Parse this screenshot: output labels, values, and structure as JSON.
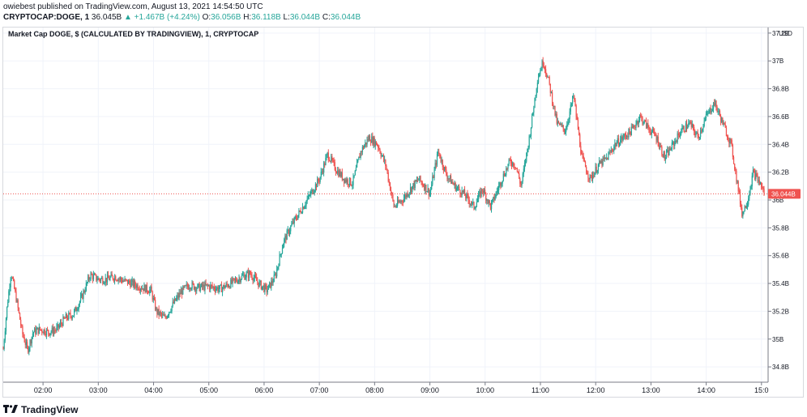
{
  "header": {
    "author_line": "owiebest published on TradingView.com, August 13, 2021 14:54:50 UTC",
    "symbol": "CRYPTOCAP:DOGE, 1",
    "price": "36.045B",
    "change": "▲ +1.467B (+4.24%)",
    "o_label": "O:",
    "o_value": "36.056B",
    "h_label": "H:",
    "h_value": "36.118B",
    "l_label": "L:",
    "l_value": "36.044B",
    "c_label": "C:",
    "c_value": "36.044B"
  },
  "chart": {
    "series_label": "Market Cap DOGE, $ (CALCULATED BY TRADINGVIEW), 1, CRYPTOCAP",
    "currency": "USD",
    "last_price_label": "36.044B"
  },
  "footer": {
    "brand": "TradingView",
    "logo_icon": "tradingview-logo-icon"
  },
  "colors": {
    "up": "#26a69a",
    "down": "#ef5350",
    "price_line": "#ef5350",
    "grid": "#f0f3fa"
  },
  "chart_data": {
    "type": "candlestick",
    "title": "Market Cap DOGE, $ (CALCULATED BY TRADINGVIEW), 1, CRYPTOCAP",
    "ylabel": "USD",
    "y_ticks": [
      "37.2B",
      "37B",
      "36.8B",
      "36.6B",
      "36.4B",
      "36.2B",
      "36B",
      "35.8B",
      "35.6B",
      "35.4B",
      "35.2B",
      "35B",
      "34.8B"
    ],
    "y_tick_values": [
      37.2,
      37.0,
      36.8,
      36.6,
      36.4,
      36.2,
      36.0,
      35.8,
      35.6,
      35.4,
      35.2,
      35.0,
      34.8
    ],
    "ylim": [
      34.69,
      37.24
    ],
    "x_ticks": [
      "02:00",
      "03:00",
      "04:00",
      "05:00",
      "06:00",
      "07:00",
      "08:00",
      "09:00",
      "10:00",
      "11:00",
      "12:00",
      "13:00",
      "14:00",
      "15:0"
    ],
    "x_tick_hours": [
      2,
      3,
      4,
      5,
      6,
      7,
      8,
      9,
      10,
      11,
      12,
      13,
      14,
      15
    ],
    "x_range_hours": [
      1.28,
      15.12
    ],
    "last_price": 36.044,
    "path_points": [
      [
        1.28,
        34.93
      ],
      [
        1.34,
        35.2
      ],
      [
        1.42,
        35.48
      ],
      [
        1.52,
        35.28
      ],
      [
        1.62,
        35.05
      ],
      [
        1.72,
        34.92
      ],
      [
        1.82,
        35.05
      ],
      [
        1.95,
        35.07
      ],
      [
        2.1,
        35.05
      ],
      [
        2.25,
        35.07
      ],
      [
        2.4,
        35.15
      ],
      [
        2.55,
        35.18
      ],
      [
        2.7,
        35.3
      ],
      [
        2.85,
        35.46
      ],
      [
        3.0,
        35.43
      ],
      [
        3.15,
        35.43
      ],
      [
        3.3,
        35.45
      ],
      [
        3.45,
        35.42
      ],
      [
        3.6,
        35.4
      ],
      [
        3.8,
        35.37
      ],
      [
        3.95,
        35.35
      ],
      [
        4.05,
        35.2
      ],
      [
        4.2,
        35.15
      ],
      [
        4.35,
        35.25
      ],
      [
        4.5,
        35.34
      ],
      [
        4.65,
        35.39
      ],
      [
        4.8,
        35.37
      ],
      [
        5.0,
        35.38
      ],
      [
        5.2,
        35.36
      ],
      [
        5.4,
        35.4
      ],
      [
        5.6,
        35.45
      ],
      [
        5.75,
        35.47
      ],
      [
        5.9,
        35.4
      ],
      [
        6.05,
        35.35
      ],
      [
        6.2,
        35.45
      ],
      [
        6.35,
        35.7
      ],
      [
        6.5,
        35.82
      ],
      [
        6.7,
        35.95
      ],
      [
        6.85,
        36.05
      ],
      [
        7.0,
        36.15
      ],
      [
        7.15,
        36.33
      ],
      [
        7.3,
        36.22
      ],
      [
        7.45,
        36.15
      ],
      [
        7.6,
        36.12
      ],
      [
        7.75,
        36.35
      ],
      [
        7.9,
        36.45
      ],
      [
        8.05,
        36.4
      ],
      [
        8.2,
        36.25
      ],
      [
        8.35,
        35.95
      ],
      [
        8.5,
        36.0
      ],
      [
        8.65,
        36.08
      ],
      [
        8.8,
        36.15
      ],
      [
        9.0,
        36.05
      ],
      [
        9.15,
        36.35
      ],
      [
        9.3,
        36.18
      ],
      [
        9.45,
        36.1
      ],
      [
        9.6,
        36.05
      ],
      [
        9.8,
        35.95
      ],
      [
        9.95,
        36.08
      ],
      [
        10.1,
        35.95
      ],
      [
        10.3,
        36.15
      ],
      [
        10.45,
        36.28
      ],
      [
        10.55,
        36.25
      ],
      [
        10.65,
        36.1
      ],
      [
        10.8,
        36.45
      ],
      [
        10.95,
        36.88
      ],
      [
        11.05,
        37.0
      ],
      [
        11.15,
        36.85
      ],
      [
        11.3,
        36.55
      ],
      [
        11.45,
        36.5
      ],
      [
        11.6,
        36.75
      ],
      [
        11.75,
        36.3
      ],
      [
        11.9,
        36.15
      ],
      [
        12.05,
        36.25
      ],
      [
        12.2,
        36.3
      ],
      [
        12.35,
        36.4
      ],
      [
        12.5,
        36.45
      ],
      [
        12.65,
        36.5
      ],
      [
        12.8,
        36.6
      ],
      [
        12.95,
        36.52
      ],
      [
        13.1,
        36.45
      ],
      [
        13.25,
        36.3
      ],
      [
        13.4,
        36.4
      ],
      [
        13.55,
        36.5
      ],
      [
        13.7,
        36.55
      ],
      [
        13.85,
        36.45
      ],
      [
        14.0,
        36.6
      ],
      [
        14.15,
        36.7
      ],
      [
        14.3,
        36.55
      ],
      [
        14.45,
        36.4
      ],
      [
        14.55,
        36.15
      ],
      [
        14.65,
        35.9
      ],
      [
        14.75,
        36.0
      ],
      [
        14.85,
        36.2
      ],
      [
        15.0,
        36.1
      ],
      [
        15.05,
        36.044
      ]
    ]
  }
}
